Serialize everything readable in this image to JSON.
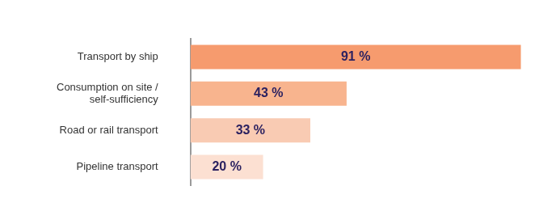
{
  "chart_data": {
    "type": "bar",
    "orientation": "horizontal",
    "categories": [
      "Transport by ship",
      "Consumption on site / self-sufficiency",
      "Road or rail transport",
      "Pipeline transport"
    ],
    "values": [
      91,
      43,
      33,
      20
    ],
    "value_labels": [
      "91 %",
      "43 %",
      "33 %",
      "20 %"
    ],
    "colors": [
      "#f69b6e",
      "#f8b48e",
      "#f9cbb3",
      "#fce0d2"
    ],
    "xlim": [
      0,
      100
    ],
    "grid": false,
    "data_labels": true,
    "tick_labels": "y"
  }
}
